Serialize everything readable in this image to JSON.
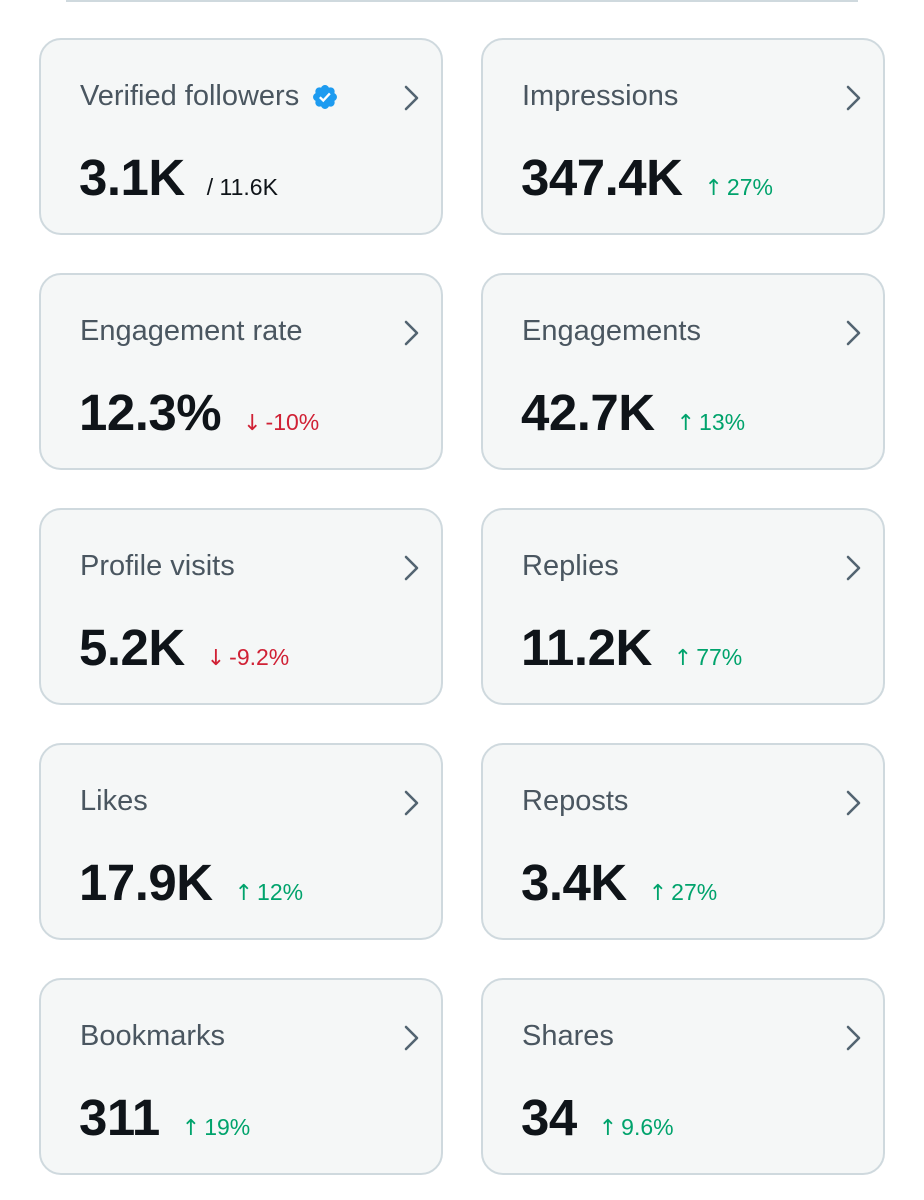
{
  "cards": [
    {
      "title": "Verified followers",
      "value": "3.1K",
      "sub": "/ 11.6K",
      "verified": true
    },
    {
      "title": "Impressions",
      "value": "347.4K",
      "delta": "27%",
      "direction": "up"
    },
    {
      "title": "Engagement rate",
      "value": "12.3%",
      "delta": "-10%",
      "direction": "down"
    },
    {
      "title": "Engagements",
      "value": "42.7K",
      "delta": "13%",
      "direction": "up"
    },
    {
      "title": "Profile visits",
      "value": "5.2K",
      "delta": "-9.2%",
      "direction": "down"
    },
    {
      "title": "Replies",
      "value": "11.2K",
      "delta": "77%",
      "direction": "up"
    },
    {
      "title": "Likes",
      "value": "17.9K",
      "delta": "12%",
      "direction": "up"
    },
    {
      "title": "Reposts",
      "value": "3.4K",
      "delta": "27%",
      "direction": "up"
    },
    {
      "title": "Bookmarks",
      "value": "311",
      "delta": "19%",
      "direction": "up"
    },
    {
      "title": "Shares",
      "value": "34",
      "delta": "9.6%",
      "direction": "up"
    }
  ],
  "icons": {
    "verified": "verified-badge-icon",
    "chevron": "chevron-right-icon",
    "up": "arrow-up-icon",
    "down": "arrow-down-icon"
  },
  "colors": {
    "up": "#00a36c",
    "down": "#d02135",
    "verified": "#1d9bf0",
    "card_bg": "#f5f7f7",
    "card_border": "#cfd9de"
  }
}
